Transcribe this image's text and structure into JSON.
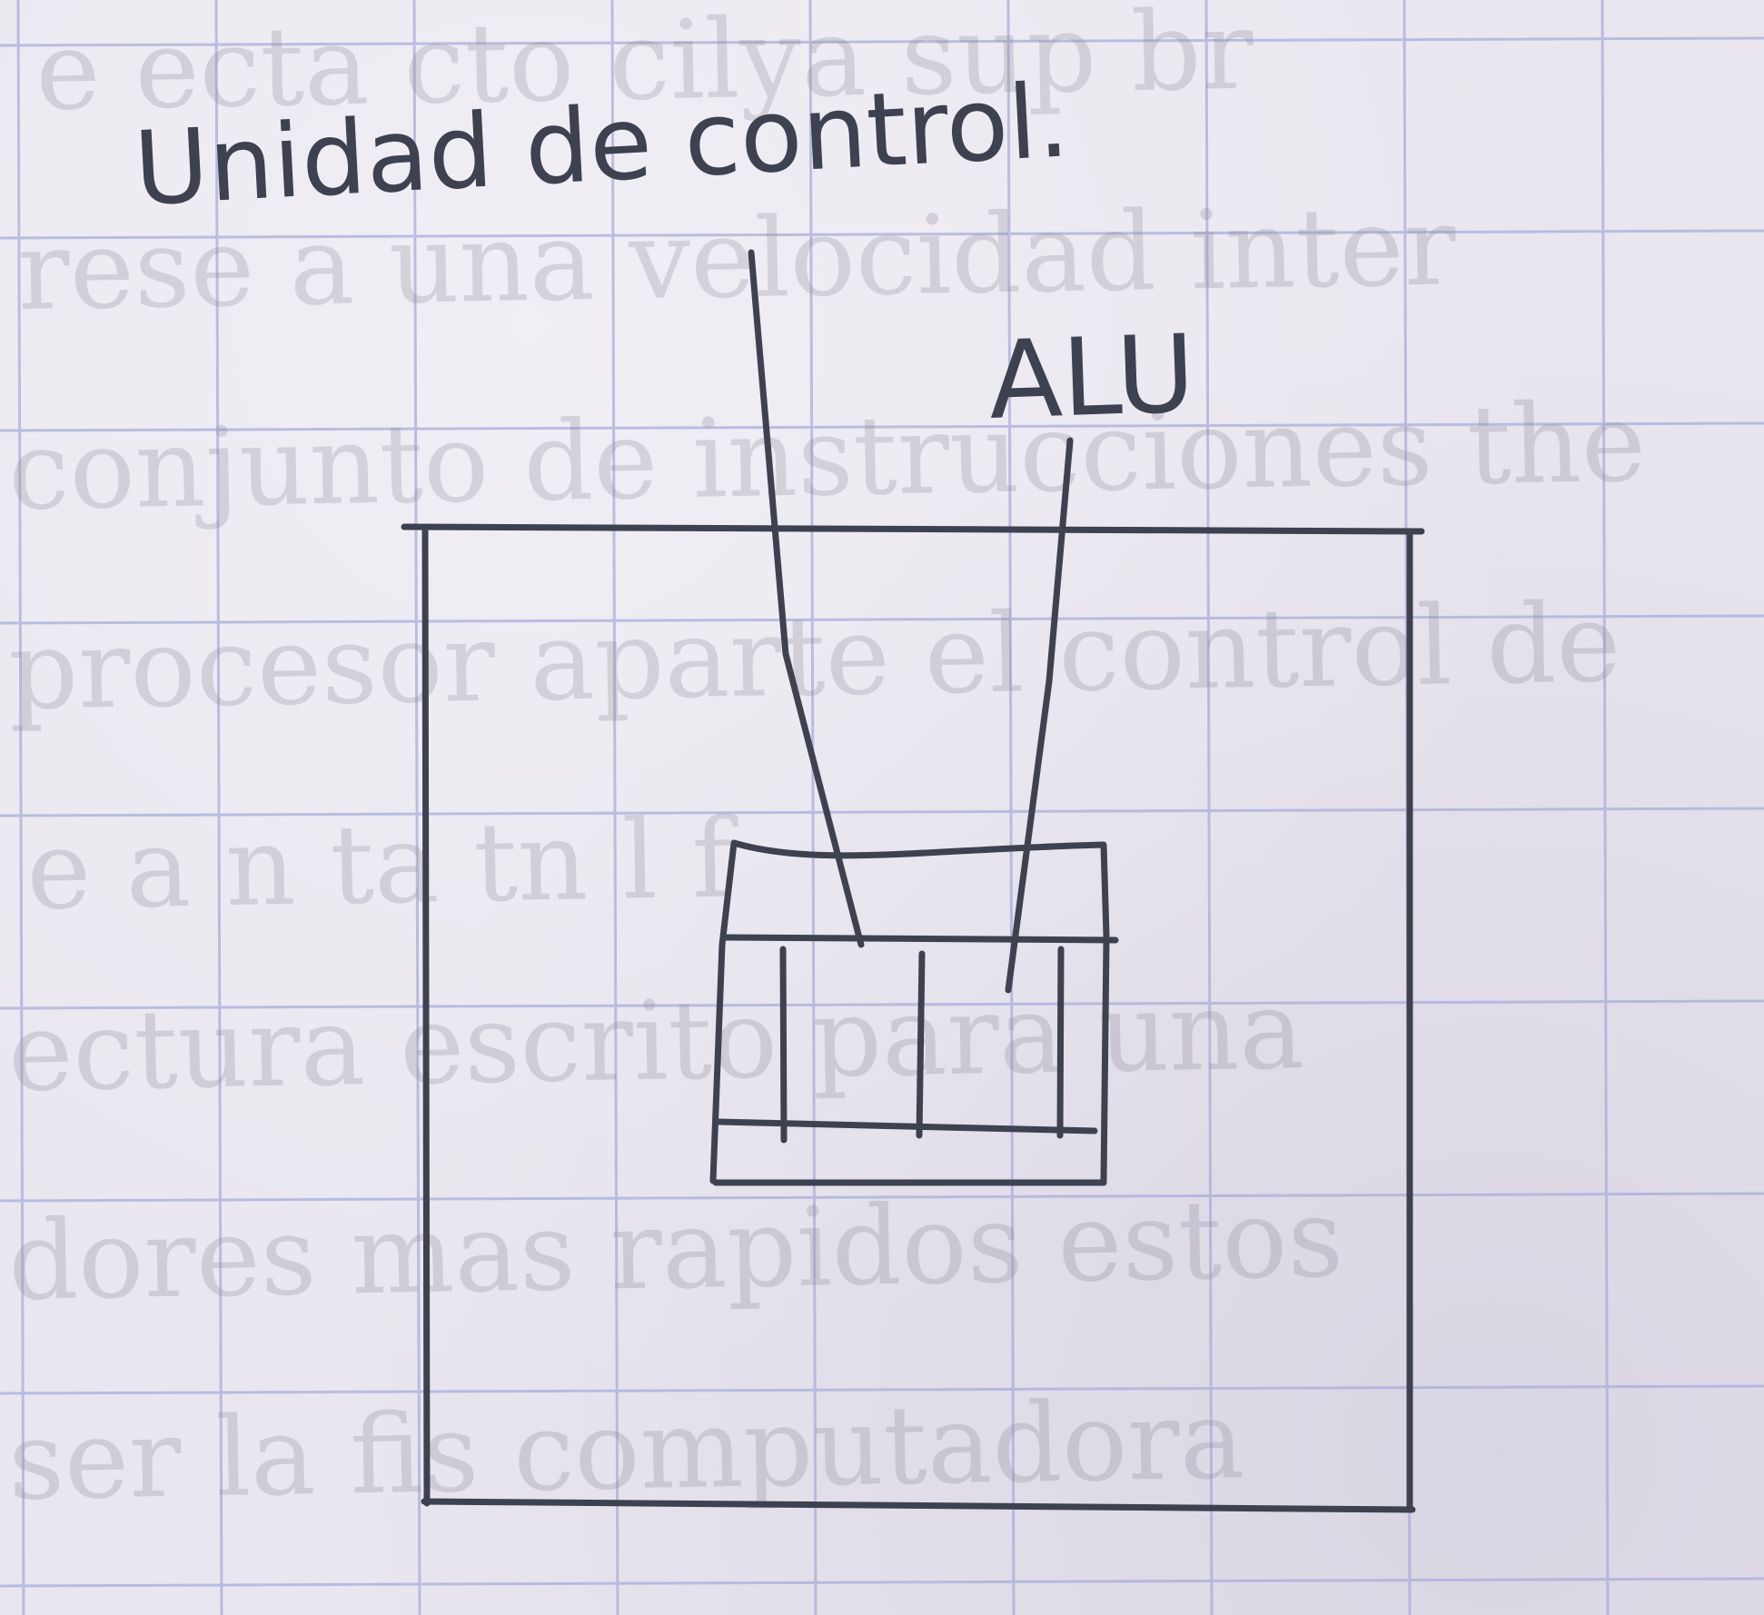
{
  "diagram": {
    "labels": {
      "control_unit": "Unidad de control.",
      "alu": "ALU"
    },
    "colors": {
      "paper": "#e9e6ef",
      "grid_lines": "#a9addb",
      "pencil": "#3e4150"
    }
  }
}
